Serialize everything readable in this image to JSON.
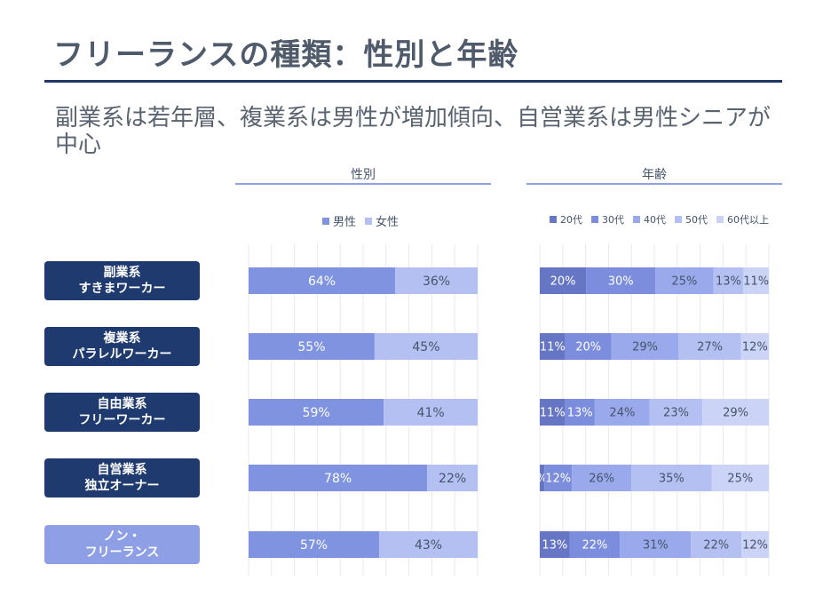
{
  "header": {
    "title": "フリーランスの種類：性別と年齢",
    "subtitle": "副業系は若年層、複業系は男性が増加傾向、自営業系は男性シニアが中心"
  },
  "sections": {
    "gender_title": "性別",
    "age_title": "年齢"
  },
  "rows": [
    {
      "line1": "副業系",
      "line2": "すきまワーカー",
      "color": "#1f3a6e"
    },
    {
      "line1": "複業系",
      "line2": "パラレルワーカー",
      "color": "#1f3a6e"
    },
    {
      "line1": "自由業系",
      "line2": "フリーワーカー",
      "color": "#1f3a6e"
    },
    {
      "line1": "自営業系",
      "line2": "独立オーナー",
      "color": "#1f3a6e"
    },
    {
      "line1": "ノン・",
      "line2": "フリーランス",
      "color": "#8e9fe6"
    }
  ],
  "colors": {
    "male": "#7f93e0",
    "female": "#b4c0f2",
    "age20": "#6676c4",
    "age30": "#7b8ddc",
    "age40": "#9aa9ec",
    "age50": "#b4c0f2",
    "age60": "#cbd4f7",
    "label_dark": "#1f3a6e",
    "label_light": "#8e9fe6"
  },
  "chart_data": [
    {
      "type": "bar",
      "orientation": "horizontal-stacked",
      "title": "性別",
      "categories": [
        "副業系 すきまワーカー",
        "複業系 パラレルワーカー",
        "自由業系 フリーワーカー",
        "自営業系 独立オーナー",
        "ノン・ フリーランス"
      ],
      "legend": "top",
      "series": [
        {
          "name": "男性",
          "values": [
            64,
            55,
            59,
            78,
            57
          ],
          "labels": [
            "64%",
            "55%",
            "59%",
            "78%",
            "57%"
          ]
        },
        {
          "name": "女性",
          "values": [
            36,
            45,
            41,
            22,
            43
          ],
          "labels": [
            "36%",
            "45%",
            "41%",
            "22%",
            "43%"
          ]
        }
      ],
      "xlim": [
        0,
        100
      ]
    },
    {
      "type": "bar",
      "orientation": "horizontal-stacked",
      "title": "年齢",
      "categories": [
        "副業系 すきまワーカー",
        "複業系 パラレルワーカー",
        "自由業系 フリーワーカー",
        "自営業系 独立オーナー",
        "ノン・ フリーランス"
      ],
      "legend": "top",
      "series": [
        {
          "name": "20代",
          "values": [
            20,
            11,
            11,
            2,
            13
          ],
          "labels": [
            "20%",
            "11%",
            "11%",
            "%",
            "13%"
          ]
        },
        {
          "name": "30代",
          "values": [
            30,
            20,
            13,
            12,
            22
          ],
          "labels": [
            "30%",
            "20%",
            "13%",
            "12%",
            "22%"
          ]
        },
        {
          "name": "40代",
          "values": [
            25,
            29,
            24,
            26,
            31
          ],
          "labels": [
            "25%",
            "29%",
            "24%",
            "26%",
            "31%"
          ]
        },
        {
          "name": "50代",
          "values": [
            13,
            27,
            23,
            35,
            22
          ],
          "labels": [
            "13%",
            "27%",
            "23%",
            "35%",
            "22%"
          ]
        },
        {
          "name": "60代以上",
          "values": [
            11,
            12,
            29,
            25,
            12
          ],
          "labels": [
            "11%",
            "12%",
            "29%",
            "25%",
            "12%"
          ]
        }
      ],
      "xlim": [
        0,
        100
      ]
    }
  ]
}
